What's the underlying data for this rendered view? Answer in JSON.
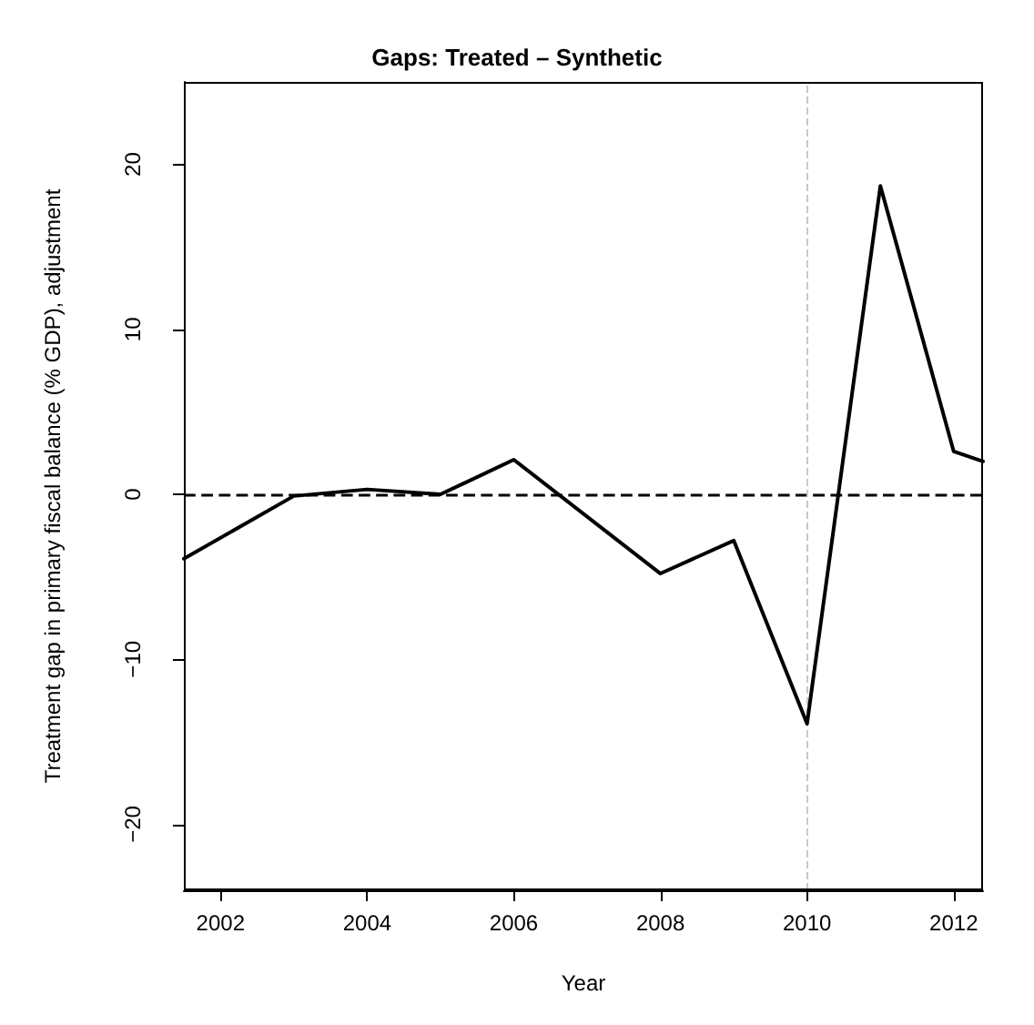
{
  "chart_data": {
    "type": "line",
    "title": "Gaps: Treated – Synthetic",
    "xlabel": "Year",
    "ylabel": "Treatment gap in primary fiscal balance (% GDP), adjustment",
    "x": [
      2001.5,
      2003,
      2004,
      2005,
      2006,
      2008,
      2009,
      2010,
      2011,
      2012,
      2012.4
    ],
    "series": [
      {
        "color": "#000000",
        "values": [
          -3.9,
          -0.1,
          0.3,
          0,
          2.1,
          -4.8,
          -2.8,
          -13.9,
          18.7,
          2.6,
          2.0
        ]
      }
    ],
    "xlim": [
      2001.5,
      2012.4
    ],
    "xticks": [
      2002,
      2004,
      2006,
      2008,
      2010,
      2012
    ],
    "ylim": [
      -24,
      25
    ],
    "yticks": [
      -20,
      -10,
      0,
      10,
      20
    ],
    "ref_lines": [
      {
        "axis": "y",
        "value": 0,
        "color": "#000000",
        "line_style": "dashed"
      },
      {
        "axis": "x",
        "value": 2010,
        "color": "#c8c8c8",
        "line_style": "dashed"
      }
    ],
    "grid": false,
    "marker": "none",
    "line_style": "solid"
  }
}
